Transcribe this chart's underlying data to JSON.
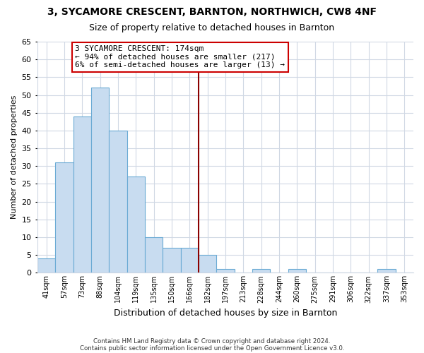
{
  "title": "3, SYCAMORE CRESCENT, BARNTON, NORTHWICH, CW8 4NF",
  "subtitle": "Size of property relative to detached houses in Barnton",
  "xlabel": "Distribution of detached houses by size in Barnton",
  "ylabel": "Number of detached properties",
  "bin_labels": [
    "41sqm",
    "57sqm",
    "73sqm",
    "88sqm",
    "104sqm",
    "119sqm",
    "135sqm",
    "150sqm",
    "166sqm",
    "182sqm",
    "197sqm",
    "213sqm",
    "228sqm",
    "244sqm",
    "260sqm",
    "275sqm",
    "291sqm",
    "306sqm",
    "322sqm",
    "337sqm",
    "353sqm"
  ],
  "bar_heights": [
    4,
    31,
    44,
    52,
    40,
    27,
    10,
    7,
    7,
    5,
    1,
    0,
    1,
    0,
    1,
    0,
    0,
    0,
    0,
    1,
    0
  ],
  "bar_color": "#c8dcf0",
  "bar_edge_color": "#6aaad4",
  "grid_color": "#d0d8e4",
  "vline_x": 8.5,
  "vline_color": "#8b0000",
  "annotation_text": "3 SYCAMORE CRESCENT: 174sqm\n← 94% of detached houses are smaller (217)\n6% of semi-detached houses are larger (13) →",
  "annotation_box_color": "#ffffff",
  "annotation_box_edge": "#cc0000",
  "ylim": [
    0,
    65
  ],
  "yticks": [
    0,
    5,
    10,
    15,
    20,
    25,
    30,
    35,
    40,
    45,
    50,
    55,
    60,
    65
  ],
  "footer_line1": "Contains HM Land Registry data © Crown copyright and database right 2024.",
  "footer_line2": "Contains public sector information licensed under the Open Government Licence v3.0.",
  "background_color": "#ffffff",
  "title_fontsize": 10,
  "subtitle_fontsize": 9
}
